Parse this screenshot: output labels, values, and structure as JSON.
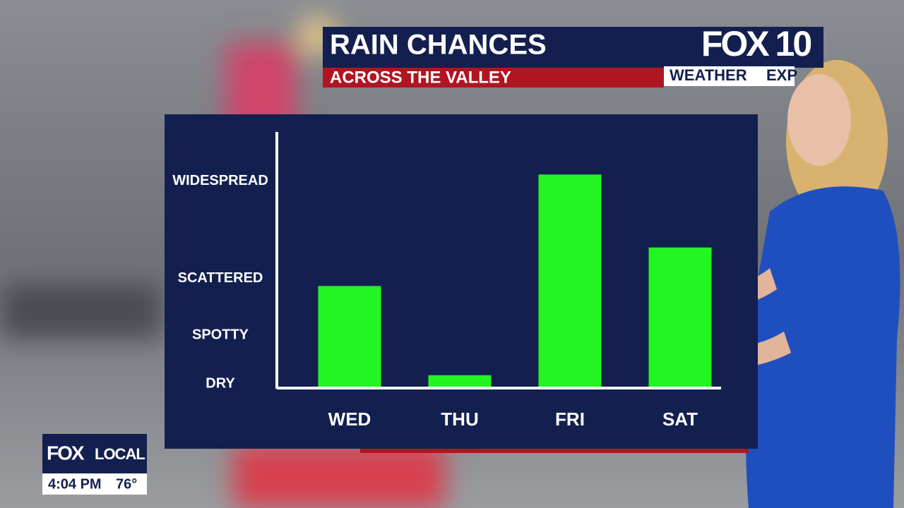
{
  "chart_data": {
    "type": "bar",
    "title": "RAIN CHANCES",
    "subtitle": "ACROSS THE VALLEY",
    "categories": [
      "WED",
      "THU",
      "FRI",
      "SAT"
    ],
    "values": [
      48,
      4,
      103,
      67
    ],
    "color": "#22f522",
    "ylim": [
      -2,
      124
    ],
    "yticks": [
      {
        "value": 0,
        "label": "DRY"
      },
      {
        "value": 24,
        "label": "SPOTTY"
      },
      {
        "value": 52,
        "label": "SCATTERED"
      },
      {
        "value": 100,
        "label": "WIDESPREAD"
      }
    ]
  },
  "branding": {
    "station": "FOX 10",
    "show": "WEATHER",
    "show_cut": "EXP",
    "local_logo_fox": "FOX",
    "local_logo_local": "LOCAL",
    "time": "4:04 PM",
    "temperature": "76°"
  }
}
